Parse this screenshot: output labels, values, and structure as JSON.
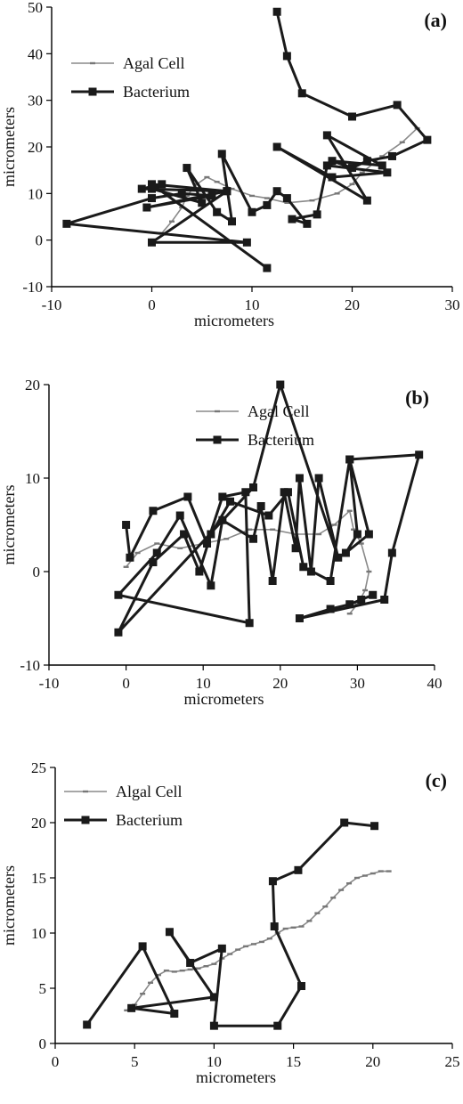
{
  "chart_data": [
    {
      "type": "line",
      "panel_label": "(a)",
      "xlabel": "micrometers",
      "ylabel": "micrometers",
      "xlim": [
        -10,
        30
      ],
      "ylim": [
        -10,
        50
      ],
      "xticks": [
        -10,
        0,
        10,
        20,
        30
      ],
      "yticks": [
        -10,
        0,
        10,
        20,
        30,
        40,
        50
      ],
      "legend_position": "upper-left",
      "series": [
        {
          "name": "Agal Cell",
          "style": "thin-grey",
          "x": [
            1,
            2,
            3,
            3.5,
            4.5,
            5.5,
            6.5,
            8,
            10,
            11.5,
            13.5,
            16,
            18.5,
            20,
            21,
            23,
            25,
            26.5
          ],
          "y": [
            1.5,
            4,
            7,
            9.5,
            12,
            13.5,
            12.5,
            11,
            9.5,
            9,
            8,
            8.5,
            10,
            12,
            14.5,
            18,
            21,
            24
          ]
        },
        {
          "name": "Bacterium",
          "style": "thick-black",
          "x": [
            12.5,
            13.5,
            15,
            20,
            24.5,
            27.5,
            24,
            21.5,
            20,
            18,
            23,
            17.5,
            21.5,
            12.5,
            18,
            23.5,
            17.5,
            16.5,
            14,
            15.5,
            13.5,
            12.5,
            11.5,
            10,
            7,
            8,
            6.5,
            3.5,
            5,
            0,
            1,
            -1,
            7.5,
            -0.5,
            6,
            3,
            0,
            -8.5,
            9.5,
            0,
            7.5,
            0,
            11.5
          ],
          "y": [
            49,
            39.5,
            31.5,
            26.5,
            29,
            21.5,
            18,
            17,
            15.5,
            17,
            16,
            22.5,
            8.5,
            20,
            13.5,
            14.5,
            16,
            5.5,
            4.5,
            3.5,
            9,
            10.5,
            7.5,
            6,
            18.5,
            4,
            6,
            15.5,
            8,
            11,
            12,
            11,
            10.5,
            7,
            9.5,
            10,
            9,
            3.5,
            -0.5,
            -0.5,
            10.5,
            12,
            -6
          ]
        }
      ]
    },
    {
      "type": "line",
      "panel_label": "(b)",
      "xlabel": "micrometers",
      "ylabel": "micrometers",
      "xlim": [
        -10,
        40
      ],
      "ylim": [
        -10,
        20
      ],
      "xticks": [
        -10,
        0,
        10,
        20,
        30,
        40
      ],
      "yticks": [
        -10,
        0,
        10,
        20
      ],
      "legend_position": "top-center",
      "series": [
        {
          "name": "Agal Cell",
          "style": "thin-grey",
          "x": [
            0,
            1.5,
            4,
            7,
            10,
            13,
            16,
            19,
            22,
            25,
            27,
            29,
            29.5,
            30.5,
            31.5,
            31,
            30,
            29
          ],
          "y": [
            0.5,
            2,
            3,
            2.5,
            3,
            3.5,
            4.5,
            4.5,
            4,
            4,
            5,
            6.5,
            4.5,
            3,
            0,
            -2,
            -3.5,
            -4.5
          ]
        },
        {
          "name": "Bacterium",
          "style": "thick-black",
          "x": [
            0,
            0.5,
            3.5,
            8,
            10.5,
            12.5,
            15.5,
            16,
            -1,
            4,
            7,
            11,
            12.5,
            16.5,
            17.5,
            19,
            20.5,
            22,
            22.5,
            24,
            25,
            27.5,
            20,
            16.5,
            -1,
            3.5,
            7.5,
            9.5,
            11,
            13.5,
            18.5,
            21,
            23,
            26.5,
            29,
            31.5,
            28.5,
            30,
            29,
            38,
            34.5,
            33.5,
            22.5,
            26.5,
            29,
            30.5,
            32
          ],
          "y": [
            5,
            1.5,
            6.5,
            8,
            3,
            8,
            8.5,
            -5.5,
            -2.5,
            2,
            6,
            -1.5,
            5.5,
            3.5,
            7,
            -1,
            8.5,
            2.5,
            10,
            0,
            10,
            1.5,
            20,
            9,
            -6.5,
            1,
            4,
            0,
            4,
            7.5,
            6,
            8.5,
            0.5,
            -1,
            12,
            4,
            2,
            4,
            12,
            12.5,
            2,
            -3,
            -5,
            -4,
            -3.5,
            -3,
            -2.5
          ]
        }
      ]
    },
    {
      "type": "line",
      "panel_label": "(c)",
      "xlabel": "micrometers",
      "ylabel": "micrometers",
      "xlim": [
        0,
        25
      ],
      "ylim": [
        0,
        25
      ],
      "xticks": [
        0,
        5,
        10,
        15,
        20,
        25
      ],
      "yticks": [
        0,
        5,
        10,
        15,
        20,
        25
      ],
      "legend_position": "upper-left",
      "series": [
        {
          "name": "Algal Cell",
          "style": "thin-grey",
          "x": [
            4.5,
            5,
            5.5,
            6,
            6.5,
            7,
            7.5,
            8,
            8.5,
            9,
            9.5,
            10,
            10.5,
            11,
            11.5,
            12,
            12.5,
            13,
            13.5,
            14,
            14.5,
            15,
            15.5,
            16,
            16.5,
            17,
            17.5,
            18,
            18.5,
            19,
            19.5,
            20,
            20.5,
            21
          ],
          "y": [
            3,
            3.5,
            4.5,
            5.5,
            6.2,
            6.6,
            6.5,
            6.6,
            6.7,
            6.8,
            7,
            7.2,
            7.7,
            8.1,
            8.5,
            8.8,
            9,
            9.2,
            9.5,
            10,
            10.4,
            10.5,
            10.6,
            11.1,
            11.8,
            12.4,
            13.2,
            13.9,
            14.5,
            15,
            15.2,
            15.4,
            15.6,
            15.6
          ]
        },
        {
          "name": "Bacterium",
          "style": "thick-black",
          "x": [
            2,
            5.5,
            7.5,
            4.8,
            10,
            7.2,
            8.5,
            10.5,
            10,
            14,
            15.5,
            13.8,
            13.7,
            15.3,
            18.2,
            20.1
          ],
          "y": [
            1.7,
            8.8,
            2.7,
            3.2,
            4.2,
            10.1,
            7.3,
            8.6,
            1.6,
            1.6,
            5.2,
            10.6,
            14.7,
            15.7,
            20,
            19.7
          ]
        }
      ]
    }
  ]
}
